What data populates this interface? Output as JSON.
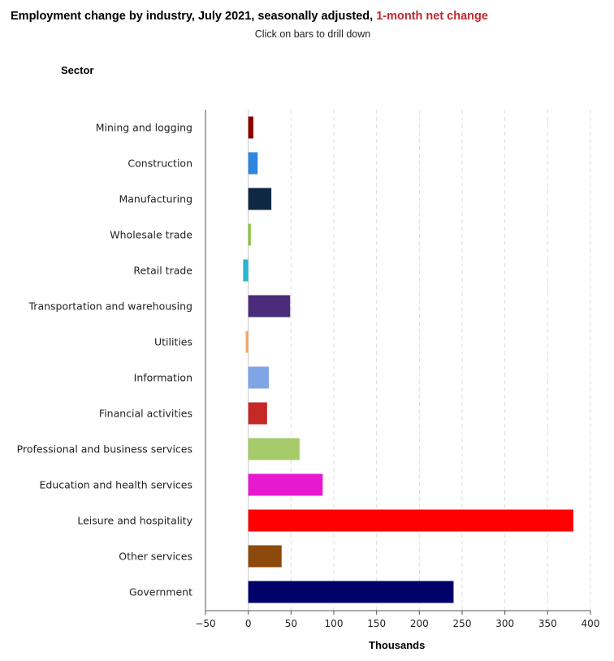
{
  "header": {
    "title_main": "Employment change by industry, July 2021, seasonally adjusted, ",
    "title_highlight": "1-month net change",
    "subtitle": "Click on bars to drill down"
  },
  "colors": {
    "highlight": "#c0282d"
  },
  "chart_data": {
    "type": "bar",
    "orientation": "horizontal",
    "title": "Employment change by industry, July 2021, seasonally adjusted, 1-month net change",
    "subtitle": "Click on bars to drill down",
    "ylabel": "Sector",
    "xlabel": "Thousands",
    "xlim": [
      -50,
      400
    ],
    "xticks": [
      -50,
      0,
      50,
      100,
      150,
      200,
      250,
      300,
      350,
      400
    ],
    "grid": "vertical-dashed",
    "categories": [
      "Mining and logging",
      "Construction",
      "Manufacturing",
      "Wholesale trade",
      "Retail trade",
      "Transportation and warehousing",
      "Utilities",
      "Information",
      "Financial activities",
      "Professional and business services",
      "Education and health services",
      "Leisure and hospitality",
      "Other services",
      "Government"
    ],
    "values": [
      6,
      11,
      27,
      3,
      -6,
      49,
      -3,
      24,
      22,
      60,
      87,
      380,
      39,
      240
    ],
    "bar_colors": [
      "#8b0000",
      "#2e86de",
      "#0f2742",
      "#8dc63f",
      "#29b6d1",
      "#4b2c7a",
      "#f0a868",
      "#7ea6e6",
      "#c62828",
      "#a6cb6b",
      "#e619d0",
      "#ff0000",
      "#8b4a0b",
      "#00006b"
    ]
  }
}
